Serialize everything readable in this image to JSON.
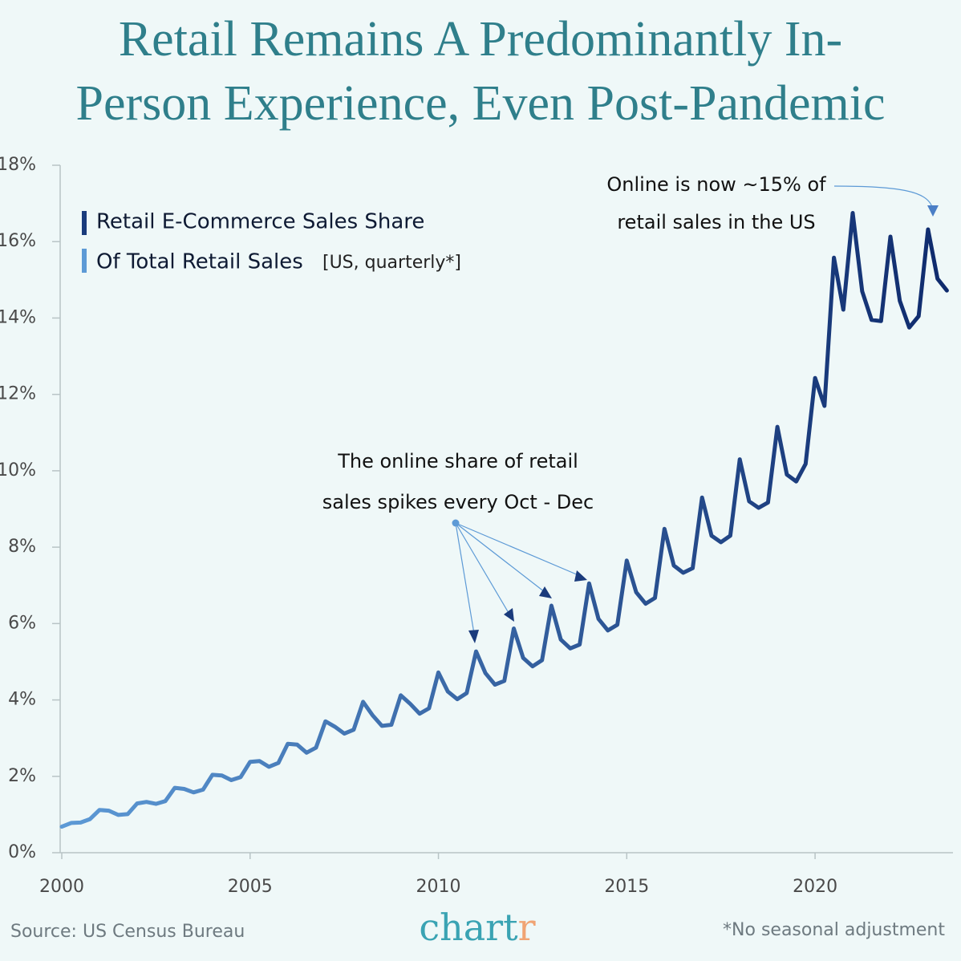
{
  "chart_data": {
    "type": "line",
    "title": [
      "Retail Remains A Predominantly In-",
      "Person Experience, Even Post-Pandemic"
    ],
    "legend": {
      "line1": "Retail E-Commerce Sales Share",
      "line2": "Of Total Retail Sales",
      "line2_note": "[US, quarterly*]"
    },
    "annotations": {
      "spikes": [
        "The online share of retail",
        "sales spikes every Oct - Dec"
      ],
      "online": [
        "Online is now ~15% of",
        "retail sales in the US"
      ]
    },
    "source": "Source: US Census Bureau",
    "brand": [
      "chart",
      "r"
    ],
    "footnote": "*No seasonal adjustment",
    "colors": [
      "#5d9ad6",
      "#0e2a6c"
    ],
    "x": [
      2000,
      2000.25,
      2000.5,
      2000.75,
      2001,
      2001.25,
      2001.5,
      2001.75,
      2002,
      2002.25,
      2002.5,
      2002.75,
      2003,
      2003.25,
      2003.5,
      2003.75,
      2004,
      2004.25,
      2004.5,
      2004.75,
      2005,
      2005.25,
      2005.5,
      2005.75,
      2006,
      2006.25,
      2006.5,
      2006.75,
      2007,
      2007.25,
      2007.5,
      2007.75,
      2008,
      2008.25,
      2008.5,
      2008.75,
      2009,
      2009.25,
      2009.5,
      2009.75,
      2010,
      2010.25,
      2010.5,
      2010.75,
      2011,
      2011.25,
      2011.5,
      2011.75,
      2012,
      2012.25,
      2012.5,
      2012.75,
      2013,
      2013.25,
      2013.5,
      2013.75,
      2014,
      2014.25,
      2014.5,
      2014.75,
      2015,
      2015.25,
      2015.5,
      2015.75,
      2016,
      2016.25,
      2016.5,
      2016.75,
      2017,
      2017.25,
      2017.5,
      2017.75,
      2018,
      2018.25,
      2018.5,
      2018.75,
      2019,
      2019.25,
      2019.5,
      2019.75,
      2020,
      2020.25,
      2020.5,
      2020.75,
      2021,
      2021.25,
      2021.5,
      2021.75,
      2022,
      2022.25,
      2022.5,
      2022.75,
      2023,
      2023.25,
      2023.5
    ],
    "values": [
      0.68,
      0.78,
      0.79,
      0.88,
      1.12,
      1.1,
      0.99,
      1.01,
      1.29,
      1.33,
      1.28,
      1.35,
      1.7,
      1.67,
      1.58,
      1.65,
      2.04,
      2.02,
      1.9,
      1.98,
      2.38,
      2.4,
      2.25,
      2.35,
      2.85,
      2.83,
      2.62,
      2.75,
      3.44,
      3.3,
      3.12,
      3.22,
      3.95,
      3.6,
      3.32,
      3.35,
      4.12,
      3.9,
      3.64,
      3.78,
      4.72,
      4.22,
      4.02,
      4.18,
      5.27,
      4.7,
      4.4,
      4.5,
      5.87,
      5.1,
      4.88,
      5.04,
      6.47,
      5.58,
      5.35,
      5.45,
      7.05,
      6.12,
      5.82,
      5.97,
      7.65,
      6.82,
      6.52,
      6.67,
      8.48,
      7.52,
      7.33,
      7.45,
      9.3,
      8.3,
      8.13,
      8.3,
      10.3,
      9.2,
      9.03,
      9.17,
      11.15,
      9.9,
      9.72,
      10.18,
      12.43,
      11.7,
      15.58,
      14.22,
      16.75,
      14.7,
      13.95,
      13.92,
      16.13,
      14.45,
      13.75,
      14.05,
      16.32,
      15.03,
      14.72
    ],
    "xlim": [
      2000,
      2023.64
    ],
    "xticks": [
      2000,
      2005,
      2010,
      2015,
      2020
    ],
    "ylim": [
      0,
      18
    ],
    "yticks": [
      {
        "value": 0,
        "label": "0%"
      },
      {
        "value": 2,
        "label": "2%"
      },
      {
        "value": 4,
        "label": "4%"
      },
      {
        "value": 6,
        "label": "6%"
      },
      {
        "value": 8,
        "label": "8%"
      },
      {
        "value": 10,
        "label": "10%"
      },
      {
        "value": 12,
        "label": "12%"
      },
      {
        "value": 14,
        "label": "14%"
      },
      {
        "value": 16,
        "label": "16%"
      },
      {
        "value": 18,
        "label": "18%"
      }
    ]
  }
}
